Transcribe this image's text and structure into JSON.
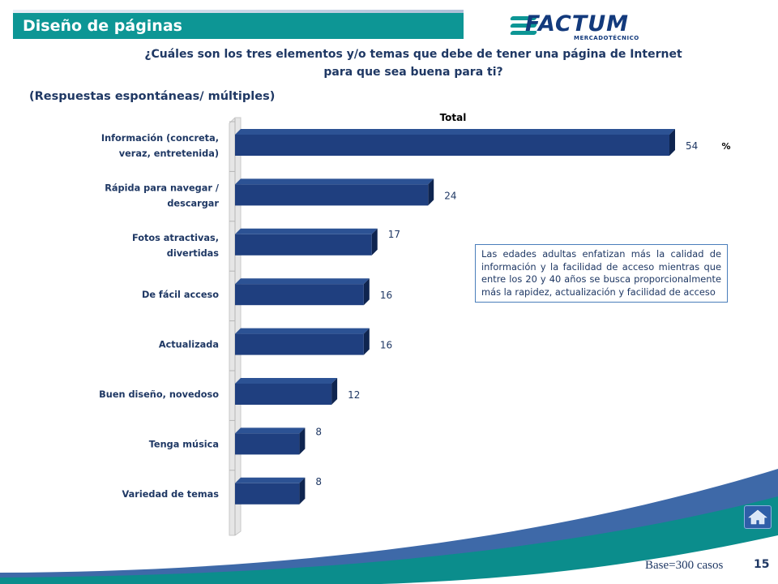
{
  "page": {
    "title": "Diseño de páginas",
    "logo": {
      "word": "FACTUM",
      "sub": "MERCADOTÉCNICO"
    },
    "question_line1": "¿Cuáles son los tres elementos y/o temas que debe de tener una página de Internet",
    "question_line2": "para que sea buena para ti?",
    "subtitle": "(Respuestas espontáneas/ múltiples)",
    "note": "Las edades adultas enfatizan más la calidad de información y la facilidad de acceso mientras que entre los 20 y 40 años se busca proporcionalmente más la rapidez, actualización y facilidad de acceso",
    "base": "Base=300 casos",
    "page_number": "15"
  },
  "colors": {
    "accent": "#0d9695",
    "bar_front": "#1f3f7f",
    "bar_top": "#2c5294",
    "bar_side": "#0f2550",
    "text": "#1f3864",
    "footer_teal": "#0b8d8c",
    "footer_blue": "#1c4f99"
  },
  "icons": {
    "home": "home-icon"
  },
  "chart_data": {
    "type": "bar",
    "orientation": "horizontal",
    "three_d": true,
    "title": "Total",
    "unit_label": "%",
    "categories": [
      [
        "Información (concreta,",
        "veraz, entretenida)"
      ],
      [
        "Rápida para navegar /",
        "descargar"
      ],
      [
        "Fotos atractivas,",
        "divertidas"
      ],
      [
        "De fácil acceso"
      ],
      [
        "Actualizada"
      ],
      [
        "Buen diseño, novedoso"
      ],
      [
        "Tenga música"
      ],
      [
        "Variedad de temas"
      ]
    ],
    "values": [
      54,
      24,
      17,
      16,
      16,
      12,
      8,
      8
    ],
    "xlim": [
      0,
      54
    ]
  }
}
